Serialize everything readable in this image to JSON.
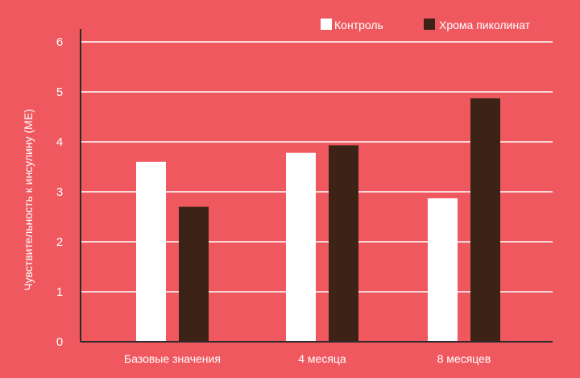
{
  "colors": {
    "background": "#f0585f",
    "grid": "#ffffff",
    "axis": "#2b2b2b",
    "text": "#ffffff"
  },
  "chart_data": {
    "type": "bar",
    "title": "",
    "xlabel": "",
    "ylabel": "Чувствительность к инсулину (МЕ)",
    "categories": [
      "Базовые значения",
      "4 месяца",
      "8 месяцев"
    ],
    "series": [
      {
        "name": "Контроль",
        "color": "#ffffff",
        "values": [
          3.6,
          3.78,
          2.87
        ]
      },
      {
        "name": "Хрома пиколинат",
        "color": "#3d2316",
        "values": [
          2.7,
          3.93,
          4.87
        ]
      }
    ],
    "ylim": [
      0,
      6
    ],
    "yticks": [
      0,
      1,
      2,
      3,
      4,
      5,
      6
    ],
    "grid": true,
    "legend_position": "top-right"
  }
}
